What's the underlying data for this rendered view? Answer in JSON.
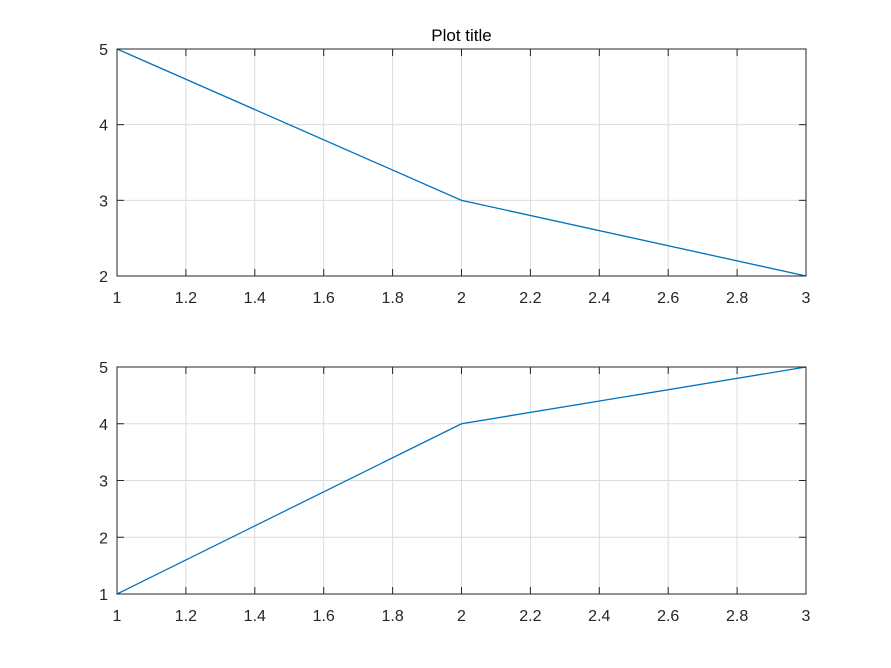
{
  "chart_data": [
    {
      "type": "line",
      "title": "Plot title",
      "xlabel": "",
      "ylabel": "",
      "xlim": [
        1,
        3
      ],
      "ylim": [
        2,
        5
      ],
      "x_ticks": [
        1,
        1.2,
        1.4,
        1.6,
        1.8,
        2,
        2.2,
        2.4,
        2.6,
        2.8,
        3
      ],
      "y_ticks": [
        2,
        3,
        4,
        5
      ],
      "grid": true,
      "series": [
        {
          "x": [
            1,
            2,
            3
          ],
          "y": [
            5,
            3,
            2
          ],
          "color": "#0072bd"
        }
      ]
    },
    {
      "type": "line",
      "title": "",
      "xlabel": "",
      "ylabel": "",
      "xlim": [
        1,
        3
      ],
      "ylim": [
        1,
        5
      ],
      "x_ticks": [
        1,
        1.2,
        1.4,
        1.6,
        1.8,
        2,
        2.2,
        2.4,
        2.6,
        2.8,
        3
      ],
      "y_ticks": [
        1,
        2,
        3,
        4,
        5
      ],
      "grid": true,
      "series": [
        {
          "x": [
            1,
            2,
            3
          ],
          "y": [
            1,
            4,
            5
          ],
          "color": "#0072bd"
        }
      ]
    }
  ]
}
